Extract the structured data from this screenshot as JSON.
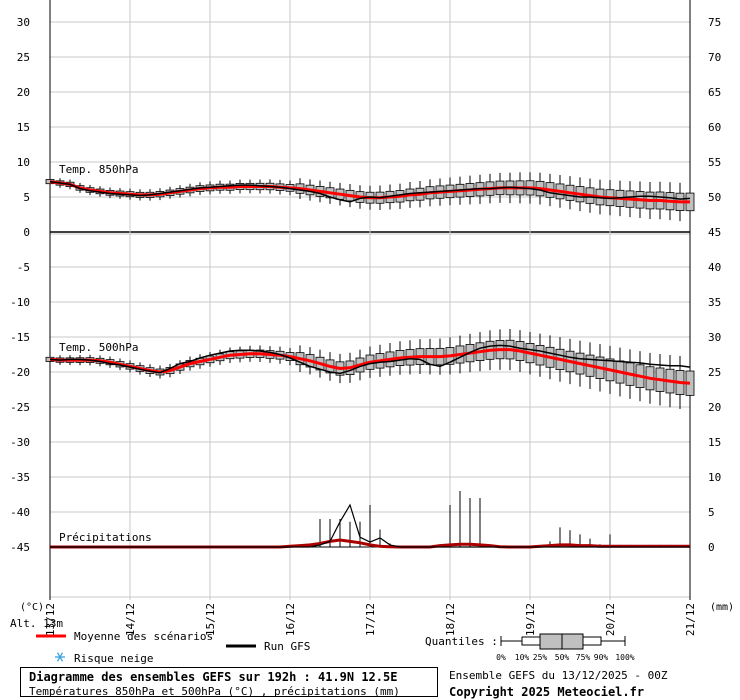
{
  "chart_data": {
    "type": "line",
    "x_dates": [
      "13/12",
      "14/12",
      "15/12",
      "16/12",
      "17/12",
      "18/12",
      "19/12",
      "20/12",
      "21/12"
    ],
    "y_left_ticks": [
      30,
      25,
      20,
      15,
      10,
      5,
      0,
      -5,
      -10,
      -15,
      -20,
      -25,
      -30,
      -35,
      -40,
      -45
    ],
    "y_right_ticks": [
      75,
      70,
      65,
      60,
      55,
      50,
      45,
      40,
      35,
      30,
      25,
      20,
      15,
      10,
      5,
      0
    ],
    "ylim_left": [
      -45,
      30
    ],
    "ylim_right": [
      0,
      75
    ],
    "ylabel_left": "(°C)",
    "ylabel_right": "(mm)",
    "grid": true,
    "series": [
      {
        "name": "Temp. 850hPa",
        "days_values": [
          7.2,
          7.0,
          6.8,
          6.3,
          6.0,
          5.8,
          5.6,
          5.5,
          5.4,
          5.3,
          5.3,
          5.4,
          5.6,
          5.8,
          6.0,
          6.2,
          6.3,
          6.4,
          6.4,
          6.5,
          6.5,
          6.5,
          6.5,
          6.4,
          6.3,
          6.2,
          6.0,
          5.8,
          5.6,
          5.4,
          5.2,
          5.0,
          4.9,
          4.9,
          5.0,
          5.1,
          5.3,
          5.4,
          5.6,
          5.7,
          5.8,
          5.9,
          6.0,
          6.1,
          6.2,
          6.3,
          6.3,
          6.3,
          6.3,
          6.2,
          6.0,
          5.8,
          5.6,
          5.4,
          5.2,
          5.0,
          4.9,
          4.8,
          4.7,
          4.6,
          4.5,
          4.5,
          4.4,
          4.3,
          4.3
        ],
        "gfs_values": [
          7.2,
          7.0,
          6.8,
          6.2,
          5.9,
          5.7,
          5.5,
          5.4,
          5.3,
          5.2,
          5.3,
          5.5,
          5.7,
          5.9,
          6.1,
          6.3,
          6.4,
          6.5,
          6.6,
          6.7,
          6.7,
          6.6,
          6.5,
          6.4,
          6.2,
          6.0,
          5.8,
          5.5,
          5.0,
          4.6,
          4.3,
          4.8,
          5.0,
          4.9,
          5.1,
          5.3,
          5.5,
          5.6,
          5.7,
          5.8,
          5.9,
          6.0,
          6.1,
          6.2,
          6.2,
          6.3,
          6.4,
          6.3,
          6.2,
          6.0,
          5.6,
          5.4,
          5.2,
          5.0,
          5.0,
          4.9,
          4.8,
          4.9,
          5.0,
          5.1,
          5.1,
          5.0,
          4.9,
          4.7,
          4.8
        ]
      },
      {
        "name": "Temp. 500hPa",
        "days_values": [
          -18.2,
          -18.3,
          -18.3,
          -18.3,
          -18.3,
          -18.4,
          -18.6,
          -18.9,
          -19.2,
          -19.5,
          -19.8,
          -20.0,
          -19.8,
          -19.3,
          -18.8,
          -18.5,
          -18.2,
          -17.9,
          -17.6,
          -17.5,
          -17.4,
          -17.4,
          -17.5,
          -17.6,
          -17.8,
          -18.1,
          -18.4,
          -18.8,
          -19.2,
          -19.5,
          -19.4,
          -19.0,
          -18.6,
          -18.4,
          -18.2,
          -18.0,
          -17.9,
          -17.8,
          -17.8,
          -17.8,
          -17.7,
          -17.5,
          -17.3,
          -17.1,
          -16.9,
          -16.8,
          -16.8,
          -17.0,
          -17.3,
          -17.6,
          -17.9,
          -18.2,
          -18.5,
          -18.8,
          -19.1,
          -19.4,
          -19.7,
          -20.0,
          -20.3,
          -20.6,
          -20.9,
          -21.1,
          -21.3,
          -21.5,
          -21.6
        ],
        "gfs_values": [
          -18.2,
          -18.3,
          -18.2,
          -18.2,
          -18.3,
          -18.5,
          -18.8,
          -19.0,
          -19.3,
          -19.6,
          -19.9,
          -20.1,
          -19.5,
          -18.8,
          -18.5,
          -18.0,
          -17.6,
          -17.3,
          -17.0,
          -16.9,
          -16.9,
          -17.0,
          -17.2,
          -17.5,
          -18.0,
          -18.6,
          -19.2,
          -19.6,
          -20.0,
          -20.2,
          -19.8,
          -19.2,
          -18.8,
          -18.6,
          -18.5,
          -18.3,
          -18.1,
          -18.2,
          -18.9,
          -19.2,
          -18.6,
          -17.9,
          -17.2,
          -16.6,
          -16.3,
          -16.2,
          -16.3,
          -16.6,
          -16.8,
          -17.0,
          -17.3,
          -17.6,
          -17.9,
          -18.1,
          -18.2,
          -18.3,
          -18.4,
          -18.5,
          -18.6,
          -18.7,
          -18.9,
          -19.0,
          -19.1,
          -19.1,
          -19.3
        ]
      },
      {
        "name": "Précipitations",
        "days_values": [
          0,
          0,
          0,
          0,
          0,
          0,
          0,
          0,
          0,
          0,
          0,
          0,
          0,
          0,
          0,
          0,
          0,
          0,
          0,
          0,
          0,
          0,
          0,
          0,
          0.1,
          0.2,
          0.3,
          0.5,
          0.8,
          1.0,
          0.8,
          0.6,
          0.3,
          0.1,
          0.05,
          0,
          0,
          0,
          0,
          0.2,
          0.3,
          0.4,
          0.4,
          0.3,
          0.2,
          0.05,
          0,
          0,
          0,
          0.1,
          0.2,
          0.3,
          0.3,
          0.2,
          0.2,
          0.1,
          0.1,
          0.1,
          0.1,
          0.1,
          0.1,
          0.1,
          0.1,
          0.1,
          0.1
        ],
        "gfs_values": [
          0,
          0,
          0,
          0,
          0,
          0,
          0,
          0,
          0,
          0,
          0,
          0,
          0,
          0,
          0,
          0,
          0,
          0,
          0,
          0,
          0,
          0,
          0,
          0,
          0,
          0,
          0,
          0.3,
          0.8,
          3.6,
          6.0,
          1.4,
          0.7,
          1.3,
          0.3,
          0,
          0,
          0,
          0,
          0,
          0,
          0,
          0,
          0,
          0,
          0,
          0,
          0,
          0,
          0,
          0,
          0,
          0,
          0,
          0,
          0,
          0,
          0,
          0,
          0,
          0,
          0,
          0,
          0,
          0
        ]
      }
    ],
    "precip_whiskers_max": [
      0,
      0,
      0,
      0,
      0,
      0,
      0,
      0,
      0,
      0,
      0,
      0,
      0,
      0,
      0,
      0,
      0,
      0,
      0,
      0,
      0,
      0,
      0,
      0,
      0,
      0,
      0,
      4.0,
      4.0,
      4.0,
      3.6,
      3.6,
      6.0,
      2.5,
      0.5,
      0,
      0,
      0,
      0,
      0,
      6.0,
      8.0,
      7.0,
      7.0,
      0,
      0,
      0,
      0,
      0,
      0,
      0.8,
      2.8,
      2.4,
      1.8,
      1.2,
      0.4,
      1.8,
      0.3,
      0.3,
      0.3,
      0.3,
      0.3,
      0.3,
      0.3,
      0.3
    ],
    "series_colors": {
      "ensemble_mean": "#ff0000",
      "gfs_run": "#000000",
      "box_fill": "#c0c0c0"
    }
  },
  "labels": {
    "temp850": "Temp. 850hPa",
    "temp500": "Temp. 500hPa",
    "precip": "Précipitations",
    "unit_left": "(°C)",
    "unit_right": "(mm)",
    "altitude": "Alt. 13m"
  },
  "legend": {
    "mean": "Moyenne des scénarios",
    "gfs": "Run GFS",
    "snow": "Risque neige",
    "quantiles": "Quantiles :",
    "quantile_marks": [
      "0%",
      "10%",
      "25%",
      "50%",
      "75%",
      "90%",
      "100%"
    ]
  },
  "footer": {
    "title": "Diagramme des ensembles GEFS sur 192h : 41.9N 12.5E",
    "subtitle": "Températures 850hPa et 500hPa (°C) , précipitations (mm)",
    "run": "Ensemble GEFS du 13/12/2025 - 00Z",
    "copyright": "Copyright 2025 Meteociel.fr"
  },
  "icons": {
    "snow": "snowflake-icon"
  }
}
